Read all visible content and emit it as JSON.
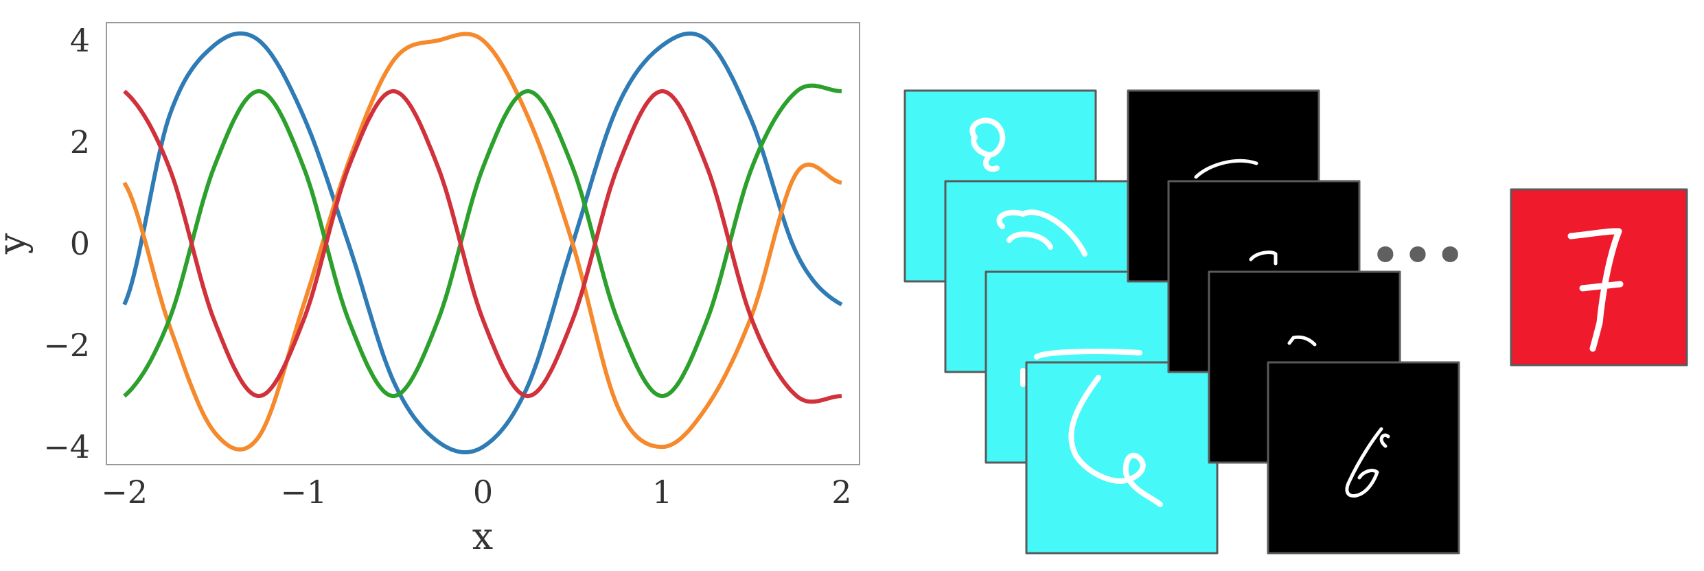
{
  "chart_data": {
    "type": "line",
    "xlabel": "x",
    "ylabel": "y",
    "xlim": [
      -2.1,
      2.1
    ],
    "ylim": [
      -4.35,
      4.35
    ],
    "x_ticks": [
      -2,
      -1,
      0,
      1,
      2
    ],
    "x_tick_labels": [
      "−2",
      "−1",
      "0",
      "1",
      "2"
    ],
    "y_ticks": [
      -4,
      -2,
      0,
      2,
      4
    ],
    "y_tick_labels": [
      "−4",
      "−2",
      "0",
      "2",
      "4"
    ],
    "grid": false,
    "legend": "none",
    "x_range": [
      -2,
      2
    ],
    "series": [
      {
        "color": "#2e7bb5",
        "amplitude": 4,
        "frequency": 1.25,
        "phase": 1.5708,
        "function": "-4*cos(2*pi*1.25*x)... sampled",
        "x": [
          -2,
          -1.75,
          -1.5,
          -1.25,
          -1,
          -0.75,
          -0.5,
          -0.25,
          0,
          0.25,
          0.5,
          0.75,
          1,
          1.25,
          1.5,
          1.75,
          2
        ],
        "y": [
          -1.2,
          2.5,
          3.9,
          4,
          2.5,
          0,
          -2.7,
          -3.9,
          -4,
          -2.8,
          0,
          2.7,
          3.9,
          4,
          2.4,
          -0.2,
          -1.2
        ]
      },
      {
        "color": "#f5892b",
        "amplitude": 4,
        "frequency": 1.0,
        "phase": 0,
        "x": [
          -2,
          -1.75,
          -1.5,
          -1.25,
          -1,
          -0.75,
          -0.5,
          -0.25,
          0,
          0.25,
          0.5,
          0.75,
          1,
          1.25,
          1.5,
          1.75,
          2
        ],
        "y": [
          1.2,
          -1.6,
          -3.7,
          -3.8,
          -1.2,
          1.6,
          3.6,
          4,
          4,
          2.5,
          0,
          -3.2,
          -4,
          -3.2,
          -1.4,
          1.4,
          1.2
        ]
      },
      {
        "color": "#2ca02c",
        "amplitude": 3,
        "frequency": 1.25,
        "phase": 0,
        "x": [
          -2,
          -1.75,
          -1.5,
          -1.25,
          -1,
          -0.75,
          -0.5,
          -0.25,
          0,
          0.25,
          0.5,
          0.75,
          1,
          1.25,
          1.5,
          1.75,
          2
        ],
        "y": [
          -3,
          -1.5,
          1.5,
          3,
          1.5,
          -1.5,
          -3,
          -1.5,
          1.5,
          3,
          1.5,
          -1.5,
          -3,
          -1.5,
          1.5,
          3,
          3
        ]
      },
      {
        "color": "#d0313b",
        "amplitude": 3,
        "frequency": 1.25,
        "phase": 3.1416,
        "x": [
          -2,
          -1.75,
          -1.5,
          -1.25,
          -1,
          -0.75,
          -0.5,
          -0.25,
          0,
          0.25,
          0.5,
          0.75,
          1,
          1.25,
          1.5,
          1.75,
          2
        ],
        "y": [
          3,
          1.5,
          -1.5,
          -3,
          -1.5,
          1.5,
          3,
          1.5,
          -1.5,
          -3,
          -1.5,
          1.5,
          3,
          1.5,
          -1.5,
          -3,
          -3
        ]
      }
    ]
  },
  "digits": {
    "cyan_color": "#46f8f8",
    "black_color": "#000000",
    "red_color": "#ef1b2c",
    "digit_stroke_color": "#ffffff",
    "cyan_stack": [
      "0",
      "0",
      "0",
      "6"
    ],
    "black_stack": [
      "0",
      "0",
      "6",
      "6"
    ],
    "ellipsis": "•••",
    "final_digit": "7"
  }
}
